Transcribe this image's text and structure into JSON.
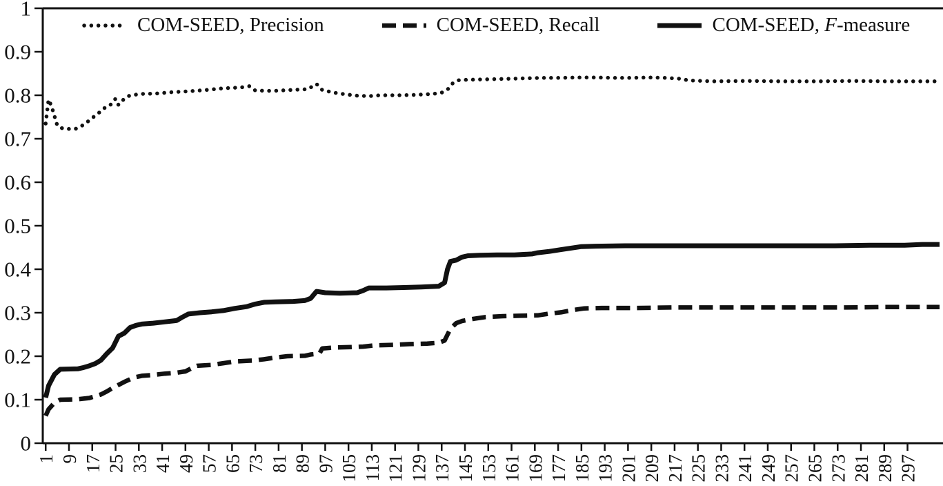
{
  "figure": {
    "background": "#ffffff",
    "ink": "#111111"
  },
  "legend": {
    "position": "top-inside",
    "items": [
      {
        "name": "precision",
        "style": "dotted",
        "label": "COM-SEED, Precision"
      },
      {
        "name": "recall",
        "style": "dashed",
        "label": "COM-SEED, Recall"
      },
      {
        "name": "fmeasure",
        "style": "solid",
        "label_pre": "COM-SEED, ",
        "label_italic": "F",
        "label_post": "-measure"
      }
    ]
  },
  "chart_data": {
    "type": "line",
    "title": "",
    "xlabel": "",
    "ylabel": "",
    "xlim": [
      0,
      308
    ],
    "ylim": [
      0,
      1
    ],
    "grid": false,
    "legend_position": "top-inside",
    "legend": [
      "COM-SEED, Precision",
      "COM-SEED, Recall",
      "COM-SEED, F-measure"
    ],
    "x_ticks": [
      1,
      9,
      17,
      25,
      33,
      41,
      49,
      57,
      65,
      73,
      81,
      89,
      97,
      105,
      113,
      121,
      129,
      137,
      145,
      153,
      161,
      169,
      177,
      185,
      193,
      201,
      209,
      217,
      225,
      233,
      241,
      249,
      257,
      265,
      273,
      281,
      289,
      297
    ],
    "y_ticks": [
      0,
      0.1,
      0.2,
      0.3,
      0.4,
      0.5,
      0.6,
      0.7,
      0.8,
      0.9,
      1
    ],
    "y_tick_labels": [
      "0",
      "0.1",
      "0.2",
      "0.3",
      "0.4",
      "0.5",
      "0.6",
      "0.7",
      "0.8",
      "0.9",
      "1"
    ],
    "series": [
      {
        "name": "COM-SEED, Precision",
        "style": "dotted",
        "points": [
          [
            1,
            0.735
          ],
          [
            2,
            0.79
          ],
          [
            3,
            0.775
          ],
          [
            5,
            0.73
          ],
          [
            7,
            0.723
          ],
          [
            11,
            0.722
          ],
          [
            13,
            0.728
          ],
          [
            15,
            0.737
          ],
          [
            17,
            0.748
          ],
          [
            19,
            0.758
          ],
          [
            21,
            0.77
          ],
          [
            23,
            0.776
          ],
          [
            25,
            0.792
          ],
          [
            26,
            0.778
          ],
          [
            28,
            0.792
          ],
          [
            30,
            0.8
          ],
          [
            34,
            0.803
          ],
          [
            39,
            0.804
          ],
          [
            44,
            0.807
          ],
          [
            50,
            0.809
          ],
          [
            56,
            0.812
          ],
          [
            62,
            0.816
          ],
          [
            68,
            0.818
          ],
          [
            71,
            0.821
          ],
          [
            73,
            0.811
          ],
          [
            79,
            0.81
          ],
          [
            85,
            0.812
          ],
          [
            91,
            0.814
          ],
          [
            94,
            0.826
          ],
          [
            96,
            0.812
          ],
          [
            100,
            0.806
          ],
          [
            104,
            0.802
          ],
          [
            108,
            0.799
          ],
          [
            112,
            0.798
          ],
          [
            116,
            0.8
          ],
          [
            122,
            0.8
          ],
          [
            128,
            0.801
          ],
          [
            134,
            0.803
          ],
          [
            137,
            0.806
          ],
          [
            139,
            0.813
          ],
          [
            141,
            0.829
          ],
          [
            143,
            0.835
          ],
          [
            148,
            0.836
          ],
          [
            154,
            0.837
          ],
          [
            160,
            0.838
          ],
          [
            166,
            0.839
          ],
          [
            172,
            0.84
          ],
          [
            178,
            0.84
          ],
          [
            184,
            0.841
          ],
          [
            190,
            0.841
          ],
          [
            196,
            0.84
          ],
          [
            202,
            0.84
          ],
          [
            208,
            0.841
          ],
          [
            214,
            0.84
          ],
          [
            219,
            0.838
          ],
          [
            222,
            0.834
          ],
          [
            230,
            0.832
          ],
          [
            242,
            0.833
          ],
          [
            254,
            0.832
          ],
          [
            266,
            0.832
          ],
          [
            278,
            0.833
          ],
          [
            290,
            0.832
          ],
          [
            302,
            0.832
          ],
          [
            308,
            0.832
          ]
        ]
      },
      {
        "name": "COM-SEED, Recall",
        "style": "dashed",
        "points": [
          [
            1,
            0.063
          ],
          [
            2,
            0.078
          ],
          [
            4,
            0.093
          ],
          [
            6,
            0.1
          ],
          [
            12,
            0.101
          ],
          [
            16,
            0.104
          ],
          [
            18,
            0.108
          ],
          [
            20,
            0.112
          ],
          [
            22,
            0.119
          ],
          [
            24,
            0.127
          ],
          [
            26,
            0.134
          ],
          [
            28,
            0.141
          ],
          [
            30,
            0.147
          ],
          [
            32,
            0.152
          ],
          [
            34,
            0.155
          ],
          [
            38,
            0.157
          ],
          [
            42,
            0.16
          ],
          [
            46,
            0.162
          ],
          [
            49,
            0.165
          ],
          [
            51,
            0.172
          ],
          [
            53,
            0.178
          ],
          [
            58,
            0.18
          ],
          [
            62,
            0.184
          ],
          [
            66,
            0.188
          ],
          [
            72,
            0.19
          ],
          [
            76,
            0.193
          ],
          [
            80,
            0.197
          ],
          [
            84,
            0.2
          ],
          [
            90,
            0.201
          ],
          [
            92,
            0.204
          ],
          [
            95,
            0.206
          ],
          [
            96,
            0.218
          ],
          [
            100,
            0.22
          ],
          [
            106,
            0.221
          ],
          [
            110,
            0.222
          ],
          [
            114,
            0.225
          ],
          [
            120,
            0.226
          ],
          [
            126,
            0.228
          ],
          [
            132,
            0.229
          ],
          [
            136,
            0.231
          ],
          [
            138,
            0.236
          ],
          [
            140,
            0.263
          ],
          [
            142,
            0.276
          ],
          [
            144,
            0.281
          ],
          [
            148,
            0.286
          ],
          [
            152,
            0.29
          ],
          [
            158,
            0.292
          ],
          [
            164,
            0.293
          ],
          [
            170,
            0.294
          ],
          [
            174,
            0.298
          ],
          [
            178,
            0.301
          ],
          [
            182,
            0.306
          ],
          [
            186,
            0.31
          ],
          [
            192,
            0.311
          ],
          [
            204,
            0.311
          ],
          [
            216,
            0.312
          ],
          [
            228,
            0.312
          ],
          [
            240,
            0.312
          ],
          [
            252,
            0.312
          ],
          [
            264,
            0.312
          ],
          [
            276,
            0.312
          ],
          [
            288,
            0.313
          ],
          [
            300,
            0.313
          ],
          [
            308,
            0.313
          ]
        ]
      },
      {
        "name": "COM-SEED, F-measure",
        "style": "solid",
        "points": [
          [
            1,
            0.105
          ],
          [
            2,
            0.132
          ],
          [
            4,
            0.158
          ],
          [
            6,
            0.17
          ],
          [
            12,
            0.171
          ],
          [
            14,
            0.174
          ],
          [
            16,
            0.178
          ],
          [
            18,
            0.183
          ],
          [
            20,
            0.191
          ],
          [
            22,
            0.206
          ],
          [
            24,
            0.219
          ],
          [
            26,
            0.246
          ],
          [
            28,
            0.253
          ],
          [
            30,
            0.266
          ],
          [
            32,
            0.271
          ],
          [
            34,
            0.274
          ],
          [
            38,
            0.276
          ],
          [
            42,
            0.279
          ],
          [
            46,
            0.282
          ],
          [
            48,
            0.29
          ],
          [
            50,
            0.297
          ],
          [
            54,
            0.3
          ],
          [
            58,
            0.302
          ],
          [
            62,
            0.305
          ],
          [
            66,
            0.31
          ],
          [
            70,
            0.314
          ],
          [
            73,
            0.32
          ],
          [
            76,
            0.324
          ],
          [
            80,
            0.325
          ],
          [
            86,
            0.326
          ],
          [
            90,
            0.328
          ],
          [
            92,
            0.333
          ],
          [
            94,
            0.349
          ],
          [
            97,
            0.346
          ],
          [
            102,
            0.345
          ],
          [
            108,
            0.346
          ],
          [
            110,
            0.351
          ],
          [
            112,
            0.357
          ],
          [
            118,
            0.357
          ],
          [
            124,
            0.358
          ],
          [
            130,
            0.359
          ],
          [
            136,
            0.361
          ],
          [
            138,
            0.369
          ],
          [
            139,
            0.4
          ],
          [
            140,
            0.418
          ],
          [
            142,
            0.421
          ],
          [
            144,
            0.428
          ],
          [
            146,
            0.431
          ],
          [
            150,
            0.432
          ],
          [
            156,
            0.433
          ],
          [
            162,
            0.433
          ],
          [
            168,
            0.435
          ],
          [
            170,
            0.438
          ],
          [
            174,
            0.441
          ],
          [
            178,
            0.445
          ],
          [
            182,
            0.449
          ],
          [
            185,
            0.452
          ],
          [
            190,
            0.453
          ],
          [
            200,
            0.454
          ],
          [
            212,
            0.454
          ],
          [
            224,
            0.454
          ],
          [
            236,
            0.454
          ],
          [
            248,
            0.454
          ],
          [
            260,
            0.454
          ],
          [
            272,
            0.454
          ],
          [
            284,
            0.455
          ],
          [
            296,
            0.455
          ],
          [
            302,
            0.457
          ],
          [
            308,
            0.457
          ]
        ]
      }
    ]
  }
}
